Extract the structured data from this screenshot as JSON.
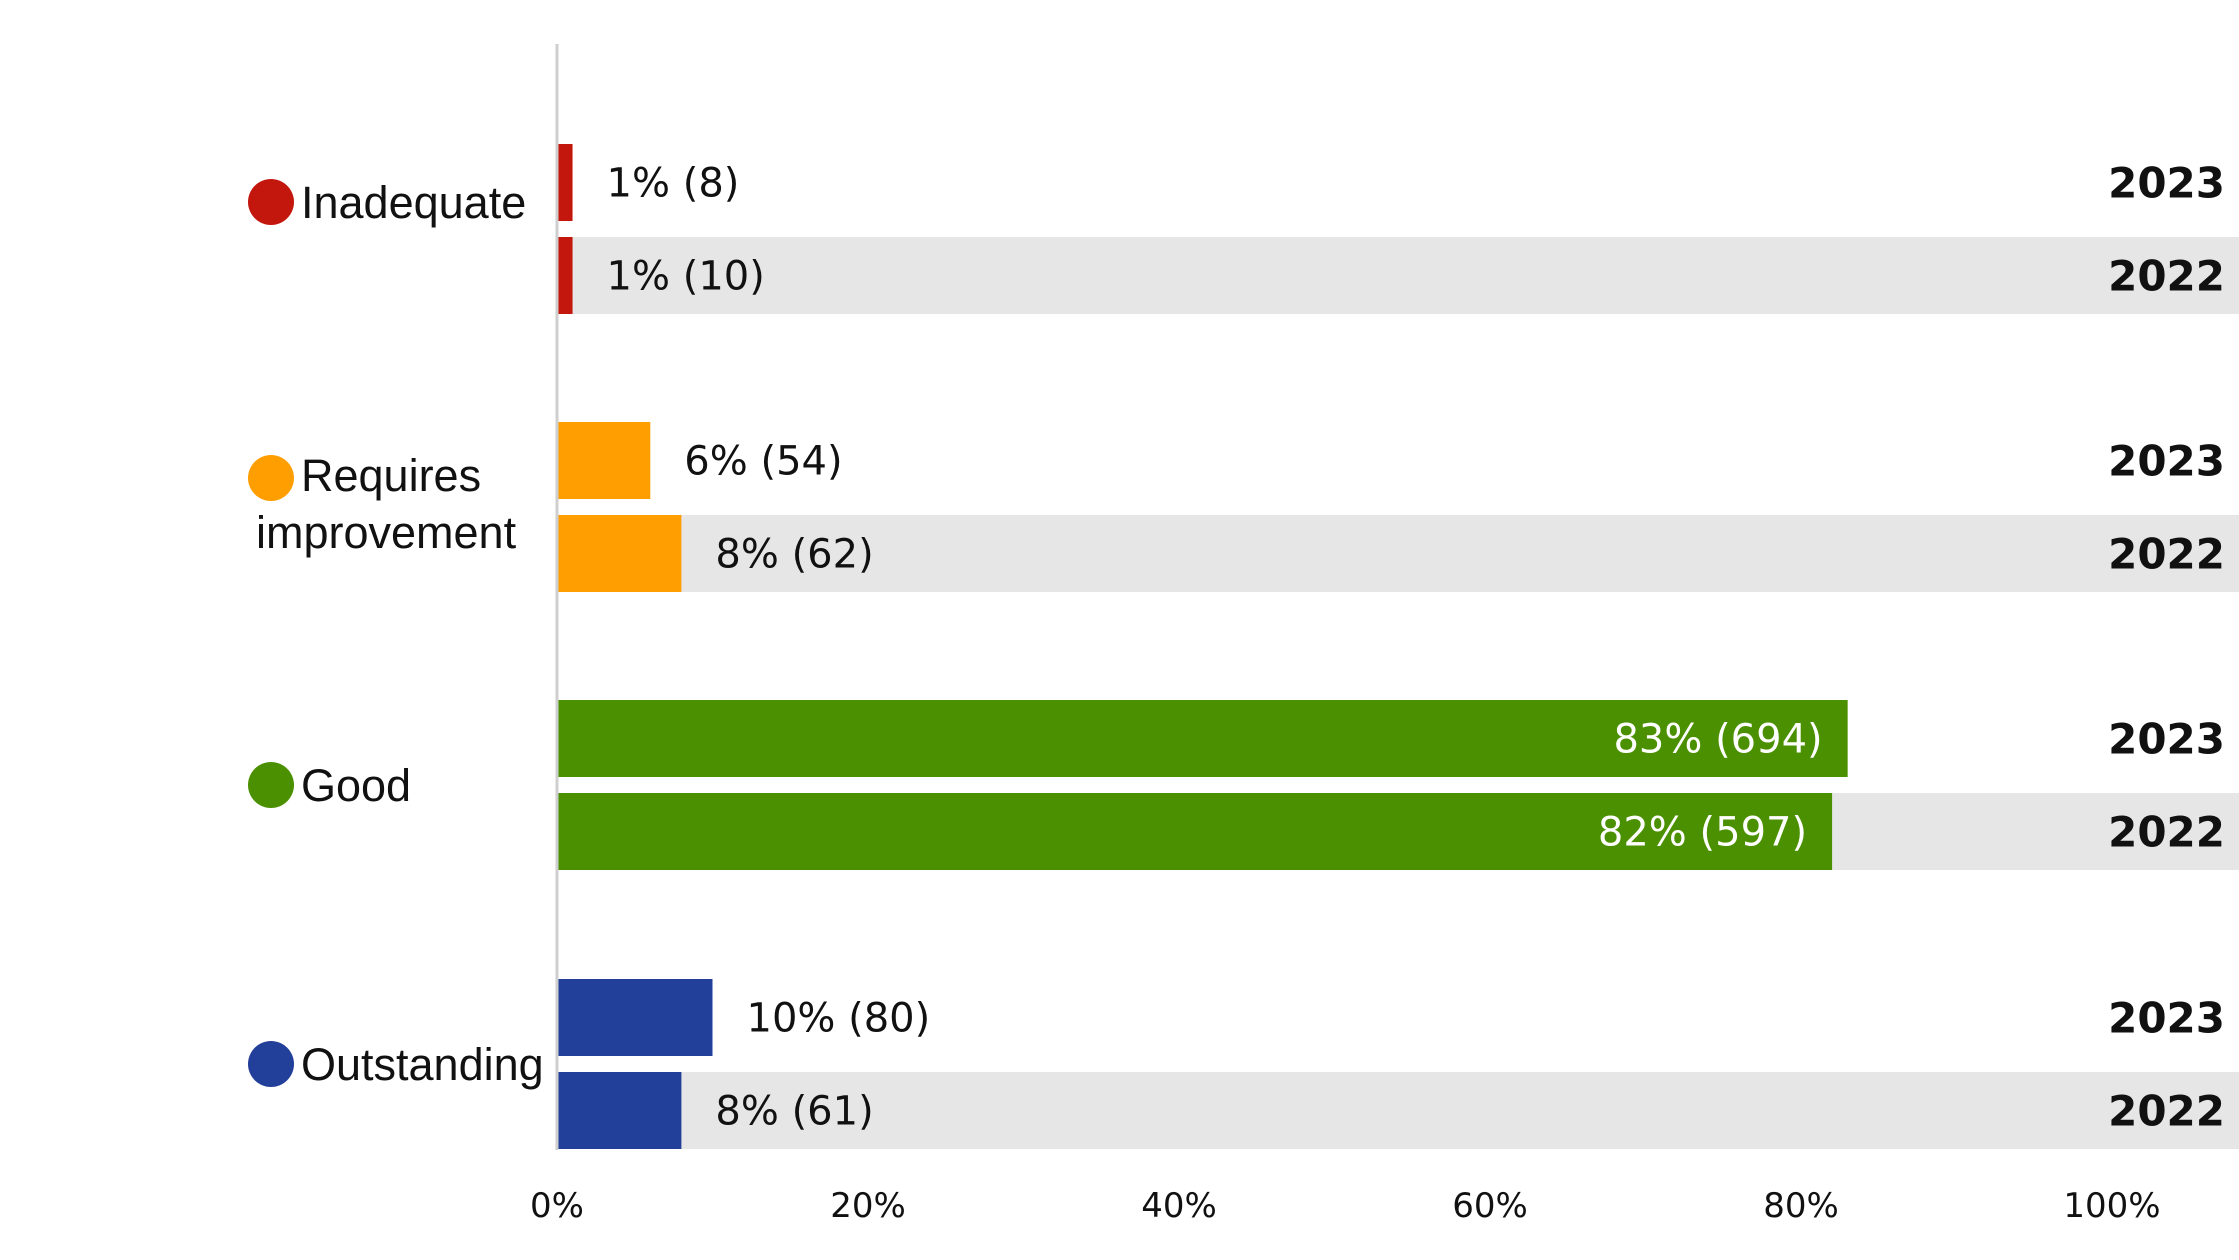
{
  "chart_data": {
    "type": "bar",
    "orientation": "horizontal",
    "xlim": [
      0,
      100
    ],
    "x_ticks": [
      "0%",
      "20%",
      "40%",
      "60%",
      "80%",
      "100%"
    ],
    "grid": false,
    "legend": "none",
    "categories": [
      {
        "name": "Inadequate",
        "color": "#c3170d",
        "bars": [
          {
            "year": "2023",
            "value": 1,
            "label": "1% (8)"
          },
          {
            "year": "2022",
            "value": 1,
            "label": "1% (10)"
          }
        ]
      },
      {
        "name": "Requires improvement",
        "name_lines": [
          "Requires",
          "improvement"
        ],
        "color": "#ff9e00",
        "bars": [
          {
            "year": "2023",
            "value": 6,
            "label": "6% (54)"
          },
          {
            "year": "2022",
            "value": 8,
            "label": "8% (62)"
          }
        ]
      },
      {
        "name": "Good",
        "color": "#4a9000",
        "bars": [
          {
            "year": "2023",
            "value": 83,
            "label": "83% (694)"
          },
          {
            "year": "2022",
            "value": 82,
            "label": "82% (597)"
          }
        ]
      },
      {
        "name": "Outstanding",
        "color": "#223f99",
        "bars": [
          {
            "year": "2023",
            "value": 10,
            "label": "10% (80)"
          },
          {
            "year": "2022",
            "value": 8,
            "label": "8% (61)"
          }
        ]
      }
    ],
    "band_color_2022": "#e6e6e6",
    "label_color_inside": "#ffffff",
    "label_color_outside": "#111111"
  }
}
